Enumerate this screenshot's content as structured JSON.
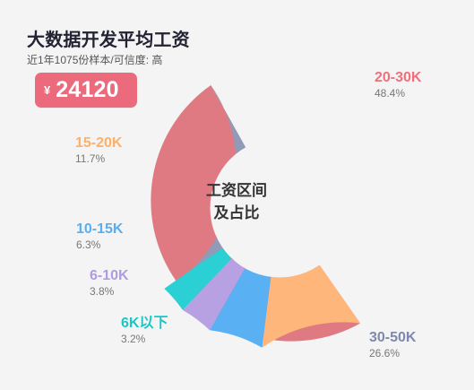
{
  "header": {
    "title": "大数据开发平均工资",
    "subtitle": "近1年1075份样本/可信度: 高",
    "currency": "¥",
    "salary": "24120"
  },
  "center": {
    "line1": "工资区间",
    "line2": "及占比"
  },
  "colors": {
    "badge": "#eb6b7d",
    "segment_20_30k": "#e07a82",
    "segment_30_50k": "#8f9bb7",
    "segment_6k_below": "#2ad0d3",
    "segment_6_10k": "#b8a1e2",
    "segment_10_15k": "#59b0f3",
    "segment_15_20k": "#ffb67b"
  },
  "chart_data": {
    "type": "pie",
    "categories": [
      "20-30K",
      "30-50K",
      "6K以下",
      "6-10K",
      "10-15K",
      "15-20K"
    ],
    "values": [
      48.4,
      26.6,
      3.2,
      3.8,
      6.3,
      11.7
    ],
    "percent_labels": [
      "48.4%",
      "26.6%",
      "3.2%",
      "3.8%",
      "6.3%",
      "11.7%"
    ],
    "colors": [
      "#e07a82",
      "#8f9bb7",
      "#2ad0d3",
      "#b8a1e2",
      "#59b0f3",
      "#ffb67b"
    ],
    "title": "",
    "legend": "outside-labels"
  }
}
